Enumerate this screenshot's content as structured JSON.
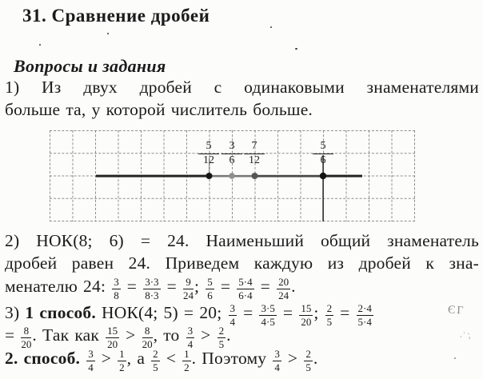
{
  "page": {
    "title": "31. Сравнение дробей",
    "section_heading": "Вопросы и задания"
  },
  "answer1": {
    "line1": "1) Из двух дробей с одинаковыми знаменателями",
    "line2": "больше та, у которой числитель больше."
  },
  "figure": {
    "type": "number-line-on-squared-grid",
    "points": [
      {
        "num": "5",
        "den": "12"
      },
      {
        "num": "3",
        "den": "6"
      },
      {
        "num": "7",
        "den": "12"
      },
      {
        "num": "5",
        "den": "6"
      }
    ]
  },
  "answer2": {
    "line1": "2) НОК(8; 6) = 24. Наименьший общий знаменатель",
    "line2": "дробей равен 24. Приведем каждую из дробей к зна-",
    "line3": [
      {
        "t": "менателю 24: "
      },
      {
        "f": [
          "3",
          "8"
        ]
      },
      {
        "t": " = "
      },
      {
        "f": [
          "3·3",
          "8·3"
        ]
      },
      {
        "t": " = "
      },
      {
        "f": [
          "9",
          "24"
        ]
      },
      {
        "t": "; "
      },
      {
        "f": [
          "5",
          "6"
        ]
      },
      {
        "t": " = "
      },
      {
        "f": [
          "5·4",
          "6·4"
        ]
      },
      {
        "t": " = "
      },
      {
        "f": [
          "20",
          "24"
        ]
      },
      {
        "t": "."
      }
    ]
  },
  "answer3": {
    "line1": [
      {
        "t": "3) "
      },
      {
        "t": "1 способ. ",
        "b": true
      },
      {
        "t": "НОК(4; 5) = 20; "
      },
      {
        "f": [
          "3",
          "4"
        ]
      },
      {
        "t": " = "
      },
      {
        "f": [
          "3·5",
          "4·5"
        ]
      },
      {
        "t": " = "
      },
      {
        "f": [
          "15",
          "20"
        ]
      },
      {
        "t": "; "
      },
      {
        "f": [
          "2",
          "5"
        ]
      },
      {
        "t": " = "
      },
      {
        "f": [
          "2·4",
          "5·4"
        ]
      }
    ],
    "line2": [
      {
        "t": "= "
      },
      {
        "f": [
          "8",
          "20"
        ]
      },
      {
        "t": ". Так как "
      },
      {
        "f": [
          "15",
          "20"
        ]
      },
      {
        "t": " > "
      },
      {
        "f": [
          "8",
          "20"
        ]
      },
      {
        "t": ", то "
      },
      {
        "f": [
          "3",
          "4"
        ]
      },
      {
        "t": " > "
      },
      {
        "f": [
          "2",
          "5"
        ]
      },
      {
        "t": "."
      }
    ],
    "method2": [
      {
        "t": "2. способ. ",
        "b": true
      },
      {
        "f": [
          "3",
          "4"
        ]
      },
      {
        "t": " > "
      },
      {
        "f": [
          "1",
          "2"
        ]
      },
      {
        "t": ", а "
      },
      {
        "f": [
          "2",
          "5"
        ]
      },
      {
        "t": " < "
      },
      {
        "f": [
          "1",
          "2"
        ]
      },
      {
        "t": ". Поэтому "
      },
      {
        "f": [
          "3",
          "4"
        ]
      },
      {
        "t": " > "
      },
      {
        "f": [
          "2",
          "5"
        ]
      },
      {
        "t": "."
      }
    ]
  },
  "noise": {
    "edge_artifact": "ЄГ",
    "corner_mark": "·ʾ;"
  },
  "colors": {
    "ink": "#1b1b1b",
    "paper": "#fcfcfb",
    "grid_line": "#7d7d7d",
    "number_line": "#232323",
    "dot_dark": "#161616",
    "dot_mid": "#555555",
    "dot_gray": "#8f8f8f"
  }
}
